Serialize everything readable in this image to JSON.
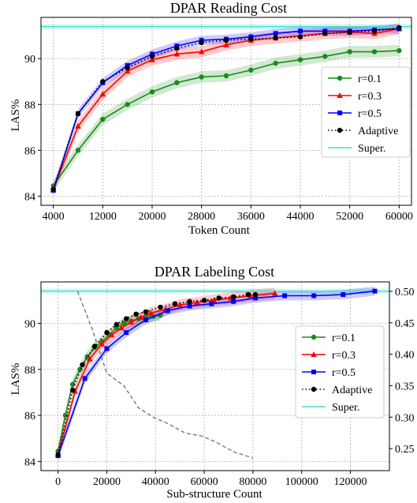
{
  "chart_data": [
    {
      "type": "line",
      "title": "DPAR Reading Cost",
      "xlabel": "Token Count",
      "ylabel": "LAS%",
      "xlim": [
        2000,
        62000
      ],
      "ylim": [
        83.6,
        91.8
      ],
      "xticks": [
        4000,
        12000,
        20000,
        28000,
        36000,
        44000,
        52000,
        60000
      ],
      "yticks": [
        84,
        86,
        88,
        90
      ],
      "grid": true,
      "legend_position": "center-right",
      "reference_line": {
        "name": "Super.",
        "y": 91.4,
        "color": "#40e0d0"
      },
      "series": [
        {
          "name": "r=0.1",
          "color": "#1a8a1a",
          "marker": "circle",
          "linestyle": "solid",
          "x": [
            4000,
            8000,
            12000,
            16000,
            20000,
            24000,
            28000,
            32000,
            36000,
            40000,
            44000,
            48000,
            52000,
            56000,
            60000
          ],
          "y": [
            84.45,
            86.0,
            87.35,
            88.0,
            88.55,
            88.95,
            89.2,
            89.25,
            89.5,
            89.8,
            89.95,
            90.1,
            90.3,
            90.3,
            90.35
          ],
          "band": 0.25
        },
        {
          "name": "r=0.3",
          "color": "#ff0000",
          "marker": "triangle",
          "linestyle": "solid",
          "x": [
            4000,
            8000,
            12000,
            16000,
            20000,
            24000,
            28000,
            32000,
            36000,
            40000,
            44000,
            48000,
            52000,
            56000,
            60000
          ],
          "y": [
            84.3,
            87.05,
            88.45,
            89.45,
            89.95,
            90.2,
            90.3,
            90.6,
            90.8,
            90.9,
            91.0,
            91.1,
            91.15,
            91.1,
            91.3
          ],
          "band": 0.25
        },
        {
          "name": "r=0.5",
          "color": "#0000ff",
          "marker": "square",
          "linestyle": "solid",
          "x": [
            4000,
            8000,
            12000,
            16000,
            20000,
            24000,
            28000,
            32000,
            36000,
            40000,
            44000,
            48000,
            52000,
            56000,
            60000
          ],
          "y": [
            84.25,
            87.6,
            88.95,
            89.7,
            90.2,
            90.55,
            90.8,
            90.85,
            90.95,
            91.1,
            91.2,
            91.2,
            91.2,
            91.25,
            91.3
          ],
          "band": 0.2
        },
        {
          "name": "Adaptive",
          "color": "#000000",
          "marker": "circle",
          "linestyle": "dotted",
          "x": [
            4000,
            8000,
            12000,
            16000,
            20000,
            24000,
            28000,
            32000,
            36000,
            40000,
            44000,
            48000,
            52000,
            56000,
            60000
          ],
          "y": [
            84.3,
            87.6,
            89.0,
            89.6,
            90.1,
            90.45,
            90.7,
            90.8,
            90.85,
            90.9,
            90.95,
            91.1,
            91.15,
            91.2,
            91.35
          ],
          "band": 0
        }
      ]
    },
    {
      "type": "line",
      "title": "DPAR Labeling Cost",
      "xlabel": "Sub-structure Count",
      "ylabel": "LAS%",
      "xlim": [
        -7000,
        136000
      ],
      "ylim": [
        83.6,
        91.8
      ],
      "xticks": [
        0,
        20000,
        40000,
        60000,
        80000,
        100000,
        120000
      ],
      "yticks": [
        84,
        86,
        88,
        90
      ],
      "y2lim": [
        0.215,
        0.515
      ],
      "y2ticks": [
        0.25,
        0.3,
        0.35,
        0.4,
        0.45,
        0.5
      ],
      "grid": true,
      "legend_position": "center-right",
      "reference_line": {
        "name": "Super.",
        "y": 91.4,
        "color": "#40e0d0"
      },
      "series": [
        {
          "name": "r=0.1",
          "color": "#1a8a1a",
          "marker": "circle",
          "linestyle": "solid",
          "x": [
            0,
            3000,
            6000,
            9000,
            12000,
            15000,
            18000,
            21000,
            24000,
            27000,
            30000,
            33000,
            36000,
            39000,
            42000
          ],
          "y": [
            84.45,
            86.0,
            87.35,
            88.0,
            88.55,
            88.95,
            89.2,
            89.5,
            89.8,
            90.0,
            90.1,
            90.2,
            90.3,
            90.3,
            90.35
          ],
          "band": 0.25
        },
        {
          "name": "r=0.3",
          "color": "#ff0000",
          "marker": "triangle",
          "linestyle": "solid",
          "x": [
            0,
            7000,
            13000,
            18000,
            22000,
            26000,
            30000,
            34000,
            38000,
            44000,
            50000,
            57000,
            64000,
            71000,
            79000,
            89000
          ],
          "y": [
            84.3,
            87.05,
            88.45,
            89.1,
            89.5,
            89.8,
            90.05,
            90.25,
            90.45,
            90.6,
            90.8,
            90.9,
            91.0,
            91.1,
            91.2,
            91.3
          ],
          "band": 0.25
        },
        {
          "name": "r=0.5",
          "color": "#0000ff",
          "marker": "square",
          "linestyle": "solid",
          "x": [
            0,
            11000,
            20000,
            28000,
            36000,
            45000,
            54000,
            63000,
            72000,
            81000,
            93000,
            105000,
            117000,
            130000
          ],
          "y": [
            84.25,
            87.6,
            88.9,
            89.6,
            90.15,
            90.55,
            90.75,
            90.85,
            90.95,
            91.1,
            91.2,
            91.2,
            91.25,
            91.4
          ],
          "band": 0.2
        },
        {
          "name": "Adaptive",
          "color": "#000000",
          "marker": "circle",
          "linestyle": "dotted",
          "x": [
            0,
            6000,
            10000,
            15000,
            20000,
            24000,
            28000,
            32000,
            36000,
            42000,
            48000,
            54000,
            60000,
            66000,
            72000,
            78000,
            81000
          ],
          "y": [
            84.3,
            87.1,
            88.2,
            89.0,
            89.6,
            89.95,
            90.2,
            90.4,
            90.5,
            90.7,
            90.85,
            90.95,
            91.0,
            91.1,
            91.15,
            91.25,
            91.25
          ],
          "band": 0
        }
      ],
      "secondary_series": {
        "name": "",
        "color": "#808080",
        "linestyle": "dashed",
        "axis": "right",
        "x": [
          8000,
          14000,
          20000,
          27000,
          33000,
          39000,
          45000,
          52000,
          59000,
          65000,
          72000,
          80000
        ],
        "y": [
          0.5,
          0.44,
          0.37,
          0.35,
          0.315,
          0.3,
          0.29,
          0.275,
          0.27,
          0.26,
          0.245,
          0.235
        ]
      }
    }
  ]
}
